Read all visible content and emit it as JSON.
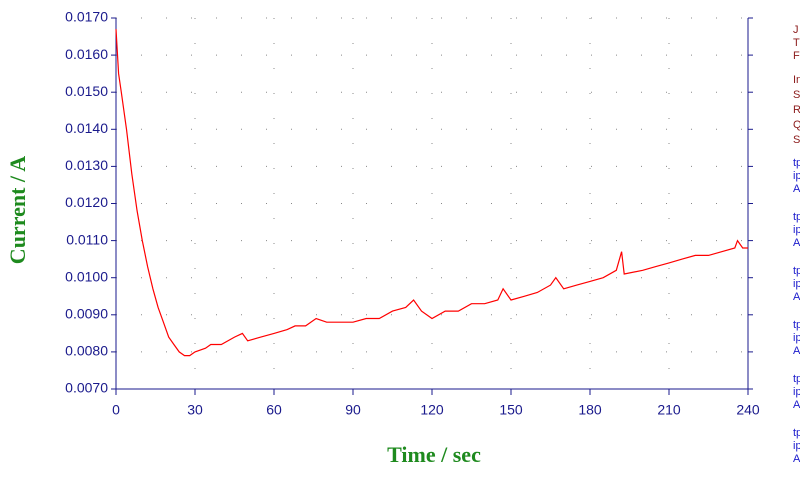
{
  "chart_data": {
    "type": "line",
    "x_label": "Time / sec",
    "y_label": "Current / A",
    "xlim": [
      0,
      240
    ],
    "xticks": [
      0,
      30,
      60,
      90,
      120,
      150,
      180,
      210,
      240
    ],
    "ylim": [
      0.007,
      0.017
    ],
    "yticks": [
      {
        "value": 0.007,
        "label": "0.0070"
      },
      {
        "value": 0.008,
        "label": "0.0080"
      },
      {
        "value": 0.009,
        "label": "0.0090"
      },
      {
        "value": 0.01,
        "label": "0.0100"
      },
      {
        "value": 0.011,
        "label": "0.0110"
      },
      {
        "value": 0.012,
        "label": "0.0120"
      },
      {
        "value": 0.013,
        "label": "0.0130"
      },
      {
        "value": 0.014,
        "label": "0.0140"
      },
      {
        "value": 0.015,
        "label": "0.0150"
      },
      {
        "value": 0.016,
        "label": "0.0160"
      },
      {
        "value": 0.017,
        "label": "0.0170"
      }
    ],
    "grid": true,
    "axis_color": "#1a1a8c",
    "series": [
      {
        "color": "#ff0000",
        "x": [
          0,
          1,
          2,
          4,
          6,
          8,
          10,
          12,
          14,
          16,
          18,
          20,
          22,
          24,
          26,
          28,
          30,
          34,
          36,
          40,
          45,
          48,
          50,
          55,
          60,
          65,
          68,
          72,
          76,
          80,
          85,
          90,
          95,
          100,
          105,
          110,
          113,
          116,
          120,
          125,
          130,
          135,
          140,
          145,
          147,
          150,
          155,
          160,
          165,
          167,
          170,
          175,
          180,
          185,
          190,
          192,
          193,
          200,
          205,
          210,
          215,
          220,
          225,
          230,
          235,
          236,
          238,
          240
        ],
        "values": [
          0.0167,
          0.0155,
          0.015,
          0.014,
          0.0128,
          0.0118,
          0.011,
          0.0103,
          0.0097,
          0.0092,
          0.0088,
          0.0084,
          0.0082,
          0.008,
          0.0079,
          0.0079,
          0.008,
          0.0081,
          0.0082,
          0.0082,
          0.0084,
          0.0085,
          0.0083,
          0.0084,
          0.0085,
          0.0086,
          0.0087,
          0.0087,
          0.0089,
          0.0088,
          0.0088,
          0.0088,
          0.0089,
          0.0089,
          0.0091,
          0.0092,
          0.0094,
          0.0091,
          0.0089,
          0.0091,
          0.0091,
          0.0093,
          0.0093,
          0.0094,
          0.0097,
          0.0094,
          0.0095,
          0.0096,
          0.0098,
          0.01,
          0.0097,
          0.0098,
          0.0099,
          0.01,
          0.0102,
          0.0107,
          0.0101,
          0.0102,
          0.0103,
          0.0104,
          0.0105,
          0.0106,
          0.0106,
          0.0107,
          0.0108,
          0.011,
          0.0108,
          0.0108
        ]
      }
    ]
  },
  "side_panel": {
    "header": [
      "J",
      "T",
      "F"
    ],
    "params": [
      "In",
      "S",
      "R",
      "Q",
      "S"
    ],
    "groups": [
      [
        "tp",
        "ip",
        "A"
      ],
      [
        "tp",
        "ip",
        "A"
      ],
      [
        "tp",
        "ip",
        "A"
      ],
      [
        "tp",
        "ip",
        "A"
      ],
      [
        "tp",
        "ip",
        "A"
      ],
      [
        "tp",
        "ip",
        "A"
      ]
    ]
  }
}
